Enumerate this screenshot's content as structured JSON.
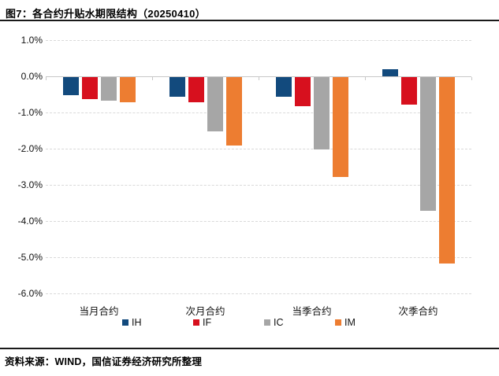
{
  "title": "图7：各合约升贴水期限结构（20250410）",
  "footer": {
    "source_label": "资料来源：WIND，国信证券经济研究所整理"
  },
  "chart_data": {
    "type": "bar",
    "title": "各合约升贴水期限结构（20250410）",
    "categories": [
      "当月合约",
      "次月合约",
      "当季合约",
      "次季合约"
    ],
    "series": [
      {
        "name": "IH",
        "color": "#124a7d",
        "values": [
          -0.5,
          -0.55,
          -0.55,
          0.2
        ]
      },
      {
        "name": "IF",
        "color": "#d7101e",
        "values": [
          -0.6,
          -0.7,
          -0.8,
          -0.75
        ]
      },
      {
        "name": "IC",
        "color": "#a6a6a6",
        "values": [
          -0.65,
          -1.5,
          -2.0,
          -3.7
        ]
      },
      {
        "name": "IM",
        "color": "#ed7d31",
        "values": [
          -0.7,
          -1.9,
          -2.75,
          -5.15
        ]
      }
    ],
    "xlabel": "",
    "ylabel": "",
    "ylim": [
      -6.0,
      1.0
    ],
    "ytick_step": 1.0,
    "yticks": [
      "1.0%",
      "0.0%",
      "-1.0%",
      "-2.0%",
      "-3.0%",
      "-4.0%",
      "-5.0%",
      "-6.0%"
    ],
    "grid": "horizontal-dashed",
    "zero_line": "solid",
    "legend_position": "bottom",
    "legend": [
      "IH",
      "IF",
      "IC",
      "IM"
    ]
  }
}
